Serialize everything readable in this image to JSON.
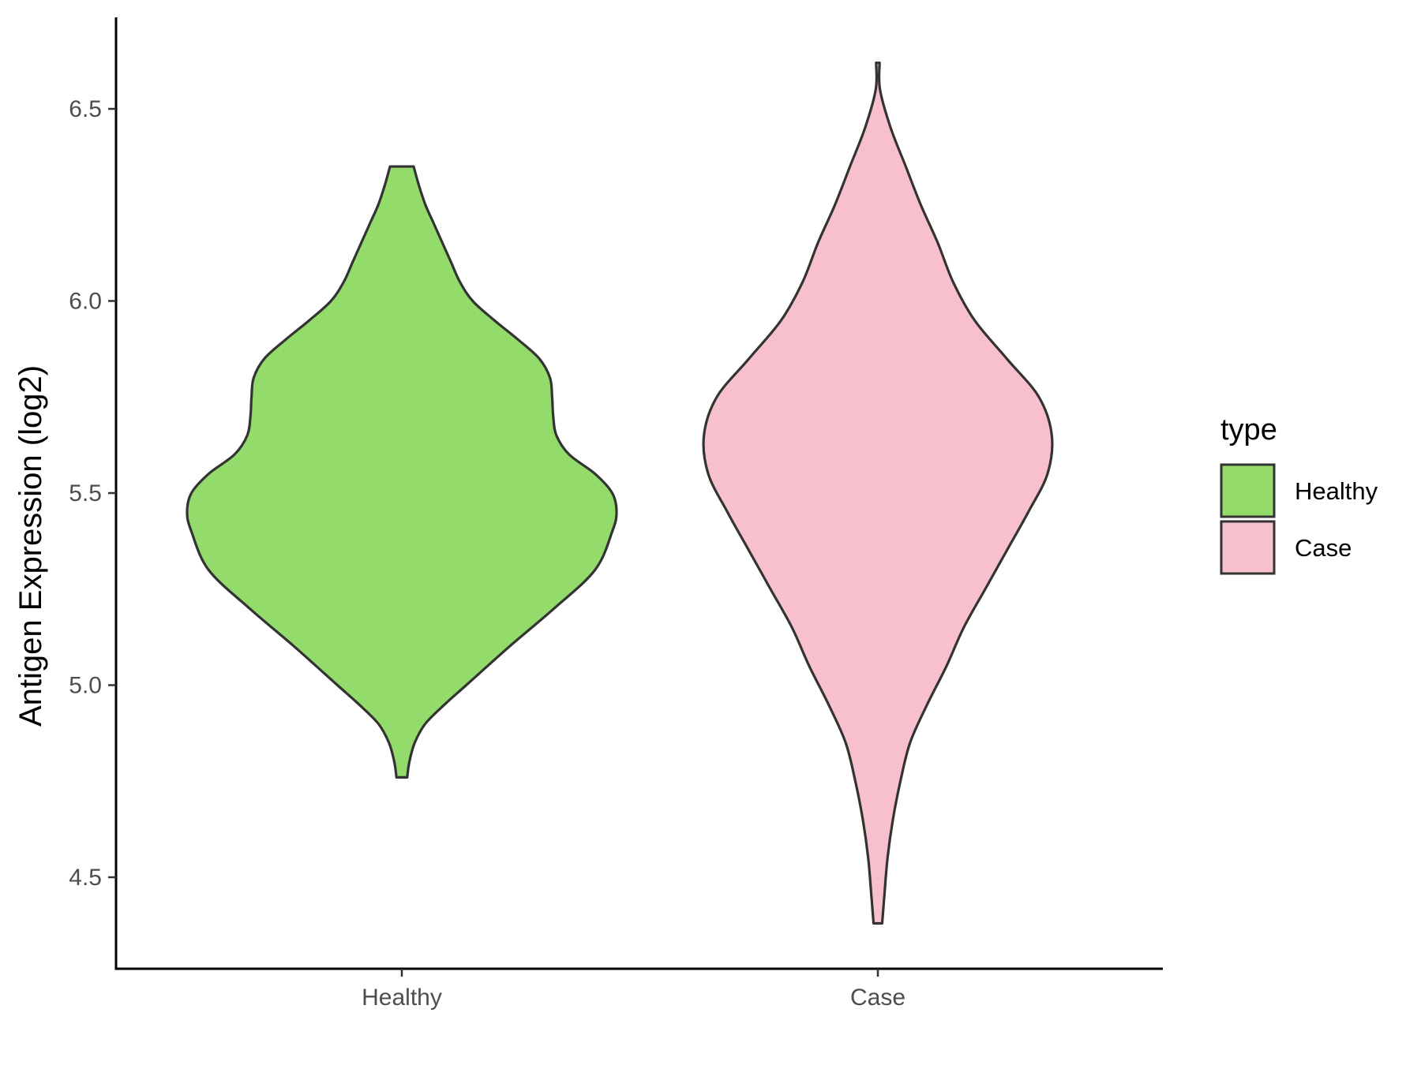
{
  "chart_data": {
    "type": "violin",
    "title": "",
    "xlabel": "",
    "ylabel": "Antigen Expression (log2)",
    "ylim": [
      4.3,
      6.75
    ],
    "yticks": [
      4.5,
      5.0,
      5.5,
      6.0,
      6.5
    ],
    "ytick_labels": [
      "4.5",
      "5.0",
      "5.5",
      "6.0",
      "6.5"
    ],
    "categories": [
      "Healthy",
      "Case"
    ],
    "grid": false,
    "legend": {
      "title": "type",
      "position": "right",
      "entries": [
        {
          "label": "Healthy",
          "color": "#93dc6b"
        },
        {
          "label": "Case",
          "color": "#f8c0cc"
        }
      ]
    },
    "series": [
      {
        "category": "Healthy",
        "color": "#93dc6b",
        "min": 4.76,
        "max": 6.35,
        "profile": [
          [
            4.76,
            0.025
          ],
          [
            4.8,
            0.035
          ],
          [
            4.85,
            0.06
          ],
          [
            4.9,
            0.11
          ],
          [
            4.95,
            0.2
          ],
          [
            5.0,
            0.3
          ],
          [
            5.1,
            0.5
          ],
          [
            5.2,
            0.71
          ],
          [
            5.3,
            0.9
          ],
          [
            5.4,
            0.98
          ],
          [
            5.45,
            1.0
          ],
          [
            5.5,
            0.98
          ],
          [
            5.55,
            0.9
          ],
          [
            5.6,
            0.78
          ],
          [
            5.65,
            0.72
          ],
          [
            5.7,
            0.705
          ],
          [
            5.75,
            0.7
          ],
          [
            5.8,
            0.69
          ],
          [
            5.85,
            0.64
          ],
          [
            5.9,
            0.54
          ],
          [
            5.95,
            0.43
          ],
          [
            6.0,
            0.33
          ],
          [
            6.05,
            0.27
          ],
          [
            6.1,
            0.23
          ],
          [
            6.15,
            0.19
          ],
          [
            6.2,
            0.15
          ],
          [
            6.25,
            0.11
          ],
          [
            6.3,
            0.08
          ],
          [
            6.35,
            0.055
          ]
        ]
      },
      {
        "category": "Case",
        "color": "#f8c0cc",
        "min": 4.38,
        "max": 6.62,
        "profile": [
          [
            4.38,
            0.02
          ],
          [
            4.45,
            0.03
          ],
          [
            4.55,
            0.045
          ],
          [
            4.65,
            0.07
          ],
          [
            4.75,
            0.105
          ],
          [
            4.85,
            0.15
          ],
          [
            4.95,
            0.23
          ],
          [
            5.05,
            0.32
          ],
          [
            5.15,
            0.4
          ],
          [
            5.25,
            0.5
          ],
          [
            5.35,
            0.6
          ],
          [
            5.45,
            0.7
          ],
          [
            5.55,
            0.79
          ],
          [
            5.65,
            0.81
          ],
          [
            5.75,
            0.75
          ],
          [
            5.85,
            0.6
          ],
          [
            5.95,
            0.45
          ],
          [
            6.05,
            0.35
          ],
          [
            6.15,
            0.28
          ],
          [
            6.25,
            0.2
          ],
          [
            6.35,
            0.13
          ],
          [
            6.45,
            0.06
          ],
          [
            6.55,
            0.01
          ],
          [
            6.62,
            0.008
          ]
        ]
      }
    ]
  }
}
